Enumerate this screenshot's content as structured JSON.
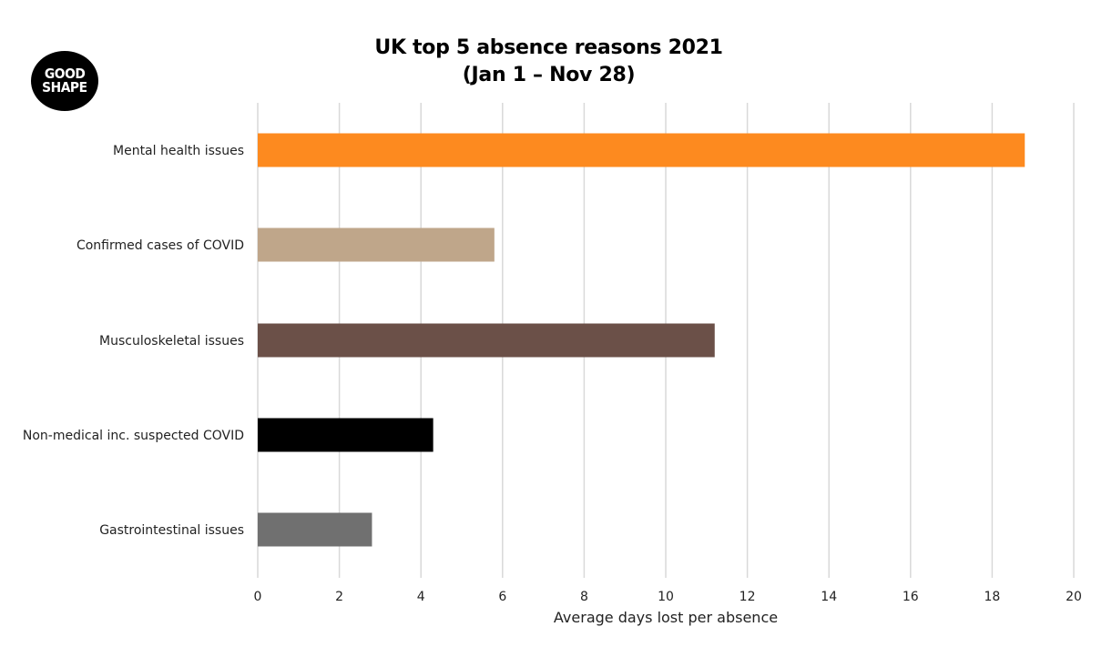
{
  "logo": {
    "line1": "GOOD",
    "line2": "SHAPE"
  },
  "chart_data": {
    "type": "bar",
    "orientation": "horizontal",
    "title": "UK top 5 absence reasons 2021",
    "subtitle": "(Jan 1 – Nov 28)",
    "xlabel": "Average days lost per absence",
    "ylabel": "",
    "xlim": [
      0,
      20
    ],
    "xticks": [
      0,
      2,
      4,
      6,
      8,
      10,
      12,
      14,
      16,
      18,
      20
    ],
    "grid": true,
    "categories": [
      "Mental health issues",
      "Confirmed cases of COVID",
      "Musculoskeletal issues",
      "Non-medical inc. suspected COVID",
      "Gastrointestinal issues"
    ],
    "values": [
      18.8,
      5.8,
      11.2,
      4.3,
      2.8
    ],
    "colors": [
      "#fd8a1f",
      "#bfa68a",
      "#6b5048",
      "#000000",
      "#707070"
    ],
    "gridColor": "#d9d9d9"
  }
}
